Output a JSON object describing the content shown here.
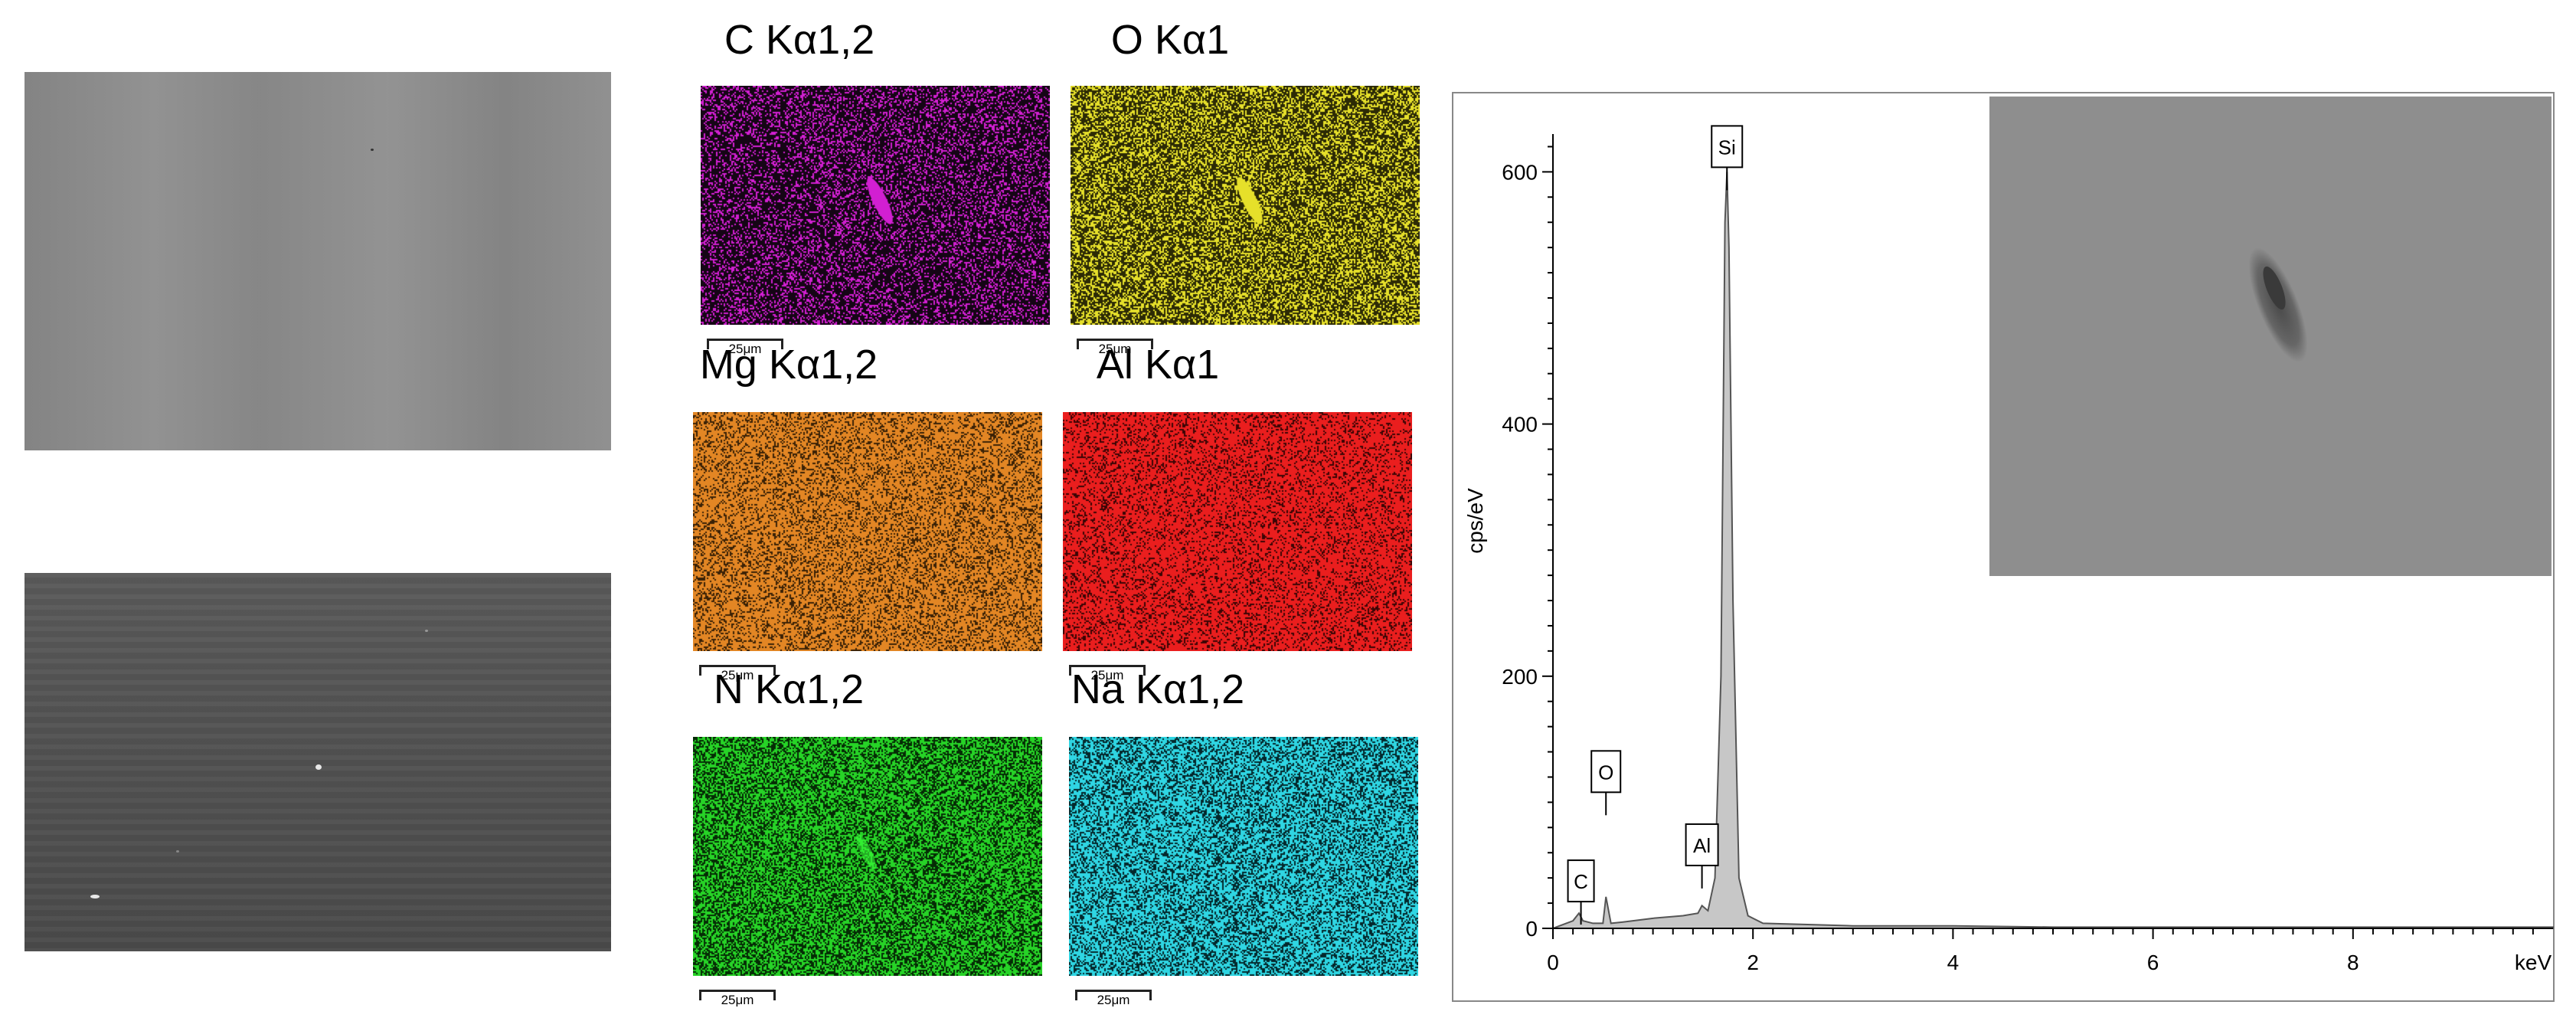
{
  "sem_images": [
    {
      "name": "SEM image (top)"
    },
    {
      "name": "SEM image (bottom)"
    }
  ],
  "maps": [
    {
      "label": "C Kα1,2",
      "color": "#d21fd2",
      "bg": "#150515",
      "scale": "25μm"
    },
    {
      "label": "O Kα1",
      "color": "#e6e02a",
      "bg": "#2c2a05",
      "scale": "25μm"
    },
    {
      "label": "Mg Kα1,2",
      "color": "#e38624",
      "bg": "#3a2106",
      "scale": "25μm"
    },
    {
      "label": "Al Kα1",
      "color": "#ea1e1e",
      "bg": "#3a0505",
      "scale": "25μm"
    },
    {
      "label": "N Kα1,2",
      "color": "#27d427",
      "bg": "#052b05",
      "scale": "25μm"
    },
    {
      "label": "Na Kα1,2",
      "color": "#2fd6e3",
      "bg": "#04282c",
      "scale": "25μm"
    }
  ],
  "chart_data": {
    "type": "area",
    "xlabel": "keV",
    "ylabel": "cps/eV",
    "xlim": [
      0,
      10
    ],
    "ylim": [
      0,
      630
    ],
    "xticks": [
      "0",
      "2",
      "4",
      "6",
      "8"
    ],
    "yticks": [
      "0",
      "200",
      "400",
      "600"
    ],
    "grid": false,
    "series": [
      {
        "x": [
          0.0,
          0.1,
          0.2,
          0.26,
          0.3,
          0.4,
          0.5,
          0.53,
          0.58,
          0.7,
          1.0,
          1.3,
          1.45,
          1.49,
          1.55,
          1.62,
          1.68,
          1.72,
          1.74,
          1.76,
          1.8,
          1.86,
          1.95,
          2.1,
          3.0,
          4.0,
          5.0,
          6.0,
          7.0,
          8.0,
          9.0,
          10.0
        ],
        "y": [
          0,
          3,
          6,
          12,
          6,
          4,
          4,
          25,
          4,
          5,
          8,
          10,
          12,
          18,
          14,
          40,
          200,
          560,
          600,
          540,
          260,
          40,
          10,
          4,
          2,
          2,
          1,
          1,
          1,
          1,
          1,
          1
        ]
      }
    ],
    "peak_labels": [
      {
        "text": "Si",
        "x": 1.74,
        "y": 600
      },
      {
        "text": "C",
        "x": 0.28,
        "y": 20
      },
      {
        "text": "O",
        "x": 0.53,
        "y": 80
      },
      {
        "text": "Al",
        "x": 1.49,
        "y": 45
      }
    ],
    "fill": "#c7c7c7",
    "stroke": "#555555"
  },
  "inset": {
    "name": "SEM image inset"
  }
}
